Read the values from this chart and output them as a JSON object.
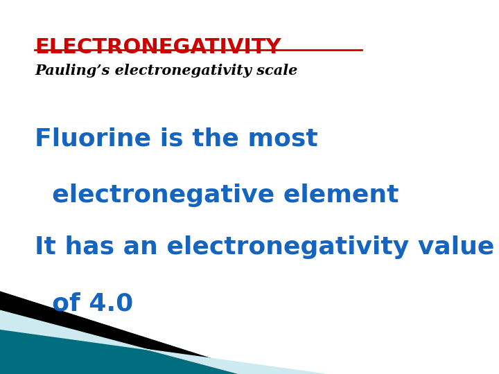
{
  "title": "ELECTRONEGATIVITY",
  "title_color": "#CC0000",
  "subtitle": "Pauling’s electronegativity scale",
  "subtitle_color": "#000000",
  "line1a": "Fluorine is the most",
  "line1b": "  electronegative element",
  "line2a": "It has an electronegativity value",
  "line2b": "  of 4.0",
  "body_color": "#1565C0",
  "background_color": "#FFFFFF",
  "teal_color": "#006E7F",
  "light_blue_color": "#CDEAF0",
  "black_color": "#000000",
  "title_fontsize": 22,
  "subtitle_fontsize": 15,
  "body_fontsize": 26
}
